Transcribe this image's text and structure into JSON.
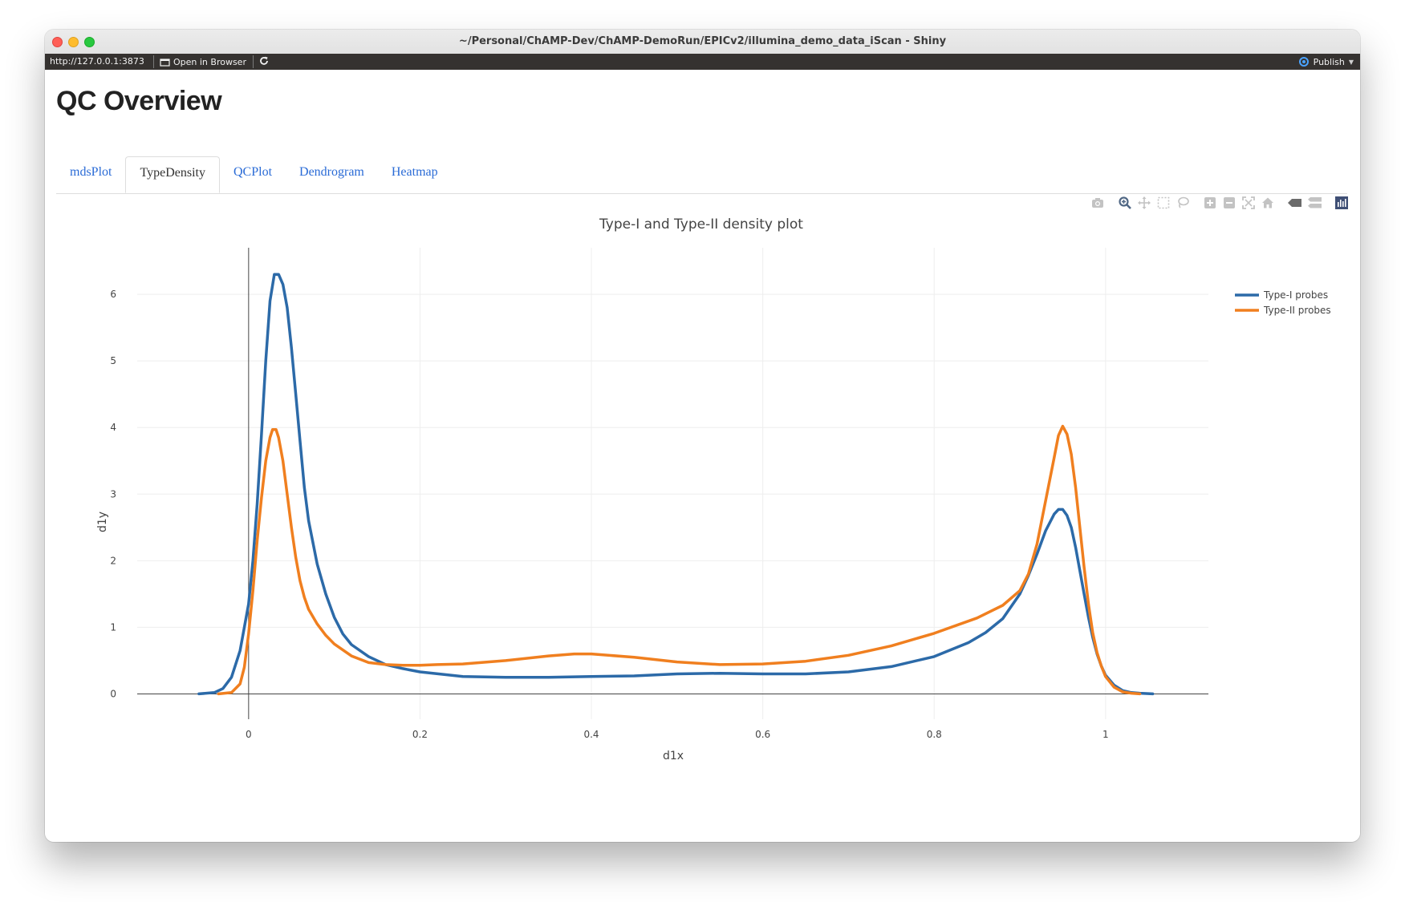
{
  "window": {
    "title": "~/Personal/ChAMP-Dev/ChAMP-DemoRun/EPICv2/illumina_demo_data_iScan - Shiny"
  },
  "toolbar": {
    "url": "http://127.0.0.1:3873",
    "open_in_browser": "Open in Browser",
    "publish": "Publish"
  },
  "page": {
    "title": "QC Overview",
    "tabs": [
      "mdsPlot",
      "TypeDensity",
      "QCPlot",
      "Dendrogram",
      "Heatmap"
    ],
    "active_tab": "TypeDensity"
  },
  "modebar": {
    "icons": [
      "camera-icon",
      "zoom-icon",
      "pan-icon",
      "box-select-icon",
      "lasso-select-icon",
      "zoom-in-icon",
      "zoom-out-icon",
      "autoscale-icon",
      "reset-axes-icon",
      "hover-closest-icon",
      "hover-compare-icon",
      "plotly-logo-icon"
    ]
  },
  "colors": {
    "type_i": "#2c6aa8",
    "type_ii": "#f07f1f",
    "link": "#2a6bd6"
  },
  "chart_data": {
    "type": "line",
    "title": "Type-I and Type-II density plot",
    "xlabel": "d1x",
    "ylabel": "d1y",
    "xlim": [
      -0.13,
      1.12
    ],
    "ylim": [
      -0.38,
      6.7
    ],
    "xticks": [
      0,
      0.2,
      0.4,
      0.6,
      0.8,
      1
    ],
    "xtick_labels": [
      "0",
      "0.2",
      "0.4",
      "0.6",
      "0.8",
      "1"
    ],
    "yticks": [
      0,
      1,
      2,
      3,
      4,
      5,
      6
    ],
    "ytick_labels": [
      "0",
      "1",
      "2",
      "3",
      "4",
      "5",
      "6"
    ],
    "grid": true,
    "legend_position": "top-right",
    "series": [
      {
        "name": "Type-I probes",
        "color": "#2c6aa8",
        "points": [
          [
            -0.058,
            0.0
          ],
          [
            -0.04,
            0.02
          ],
          [
            -0.03,
            0.08
          ],
          [
            -0.02,
            0.25
          ],
          [
            -0.01,
            0.65
          ],
          [
            0.0,
            1.35
          ],
          [
            0.005,
            2.0
          ],
          [
            0.01,
            2.85
          ],
          [
            0.015,
            3.9
          ],
          [
            0.02,
            5.0
          ],
          [
            0.025,
            5.9
          ],
          [
            0.03,
            6.3
          ],
          [
            0.035,
            6.3
          ],
          [
            0.04,
            6.15
          ],
          [
            0.045,
            5.8
          ],
          [
            0.05,
            5.2
          ],
          [
            0.055,
            4.5
          ],
          [
            0.06,
            3.8
          ],
          [
            0.065,
            3.1
          ],
          [
            0.07,
            2.6
          ],
          [
            0.08,
            1.95
          ],
          [
            0.09,
            1.5
          ],
          [
            0.1,
            1.15
          ],
          [
            0.11,
            0.9
          ],
          [
            0.12,
            0.74
          ],
          [
            0.14,
            0.56
          ],
          [
            0.16,
            0.44
          ],
          [
            0.18,
            0.38
          ],
          [
            0.2,
            0.33
          ],
          [
            0.25,
            0.26
          ],
          [
            0.3,
            0.25
          ],
          [
            0.35,
            0.25
          ],
          [
            0.4,
            0.26
          ],
          [
            0.45,
            0.27
          ],
          [
            0.5,
            0.3
          ],
          [
            0.55,
            0.31
          ],
          [
            0.6,
            0.3
          ],
          [
            0.65,
            0.3
          ],
          [
            0.7,
            0.33
          ],
          [
            0.75,
            0.41
          ],
          [
            0.8,
            0.56
          ],
          [
            0.84,
            0.77
          ],
          [
            0.86,
            0.92
          ],
          [
            0.88,
            1.13
          ],
          [
            0.9,
            1.5
          ],
          [
            0.91,
            1.78
          ],
          [
            0.92,
            2.1
          ],
          [
            0.93,
            2.45
          ],
          [
            0.94,
            2.7
          ],
          [
            0.945,
            2.77
          ],
          [
            0.95,
            2.77
          ],
          [
            0.955,
            2.68
          ],
          [
            0.96,
            2.5
          ],
          [
            0.965,
            2.2
          ],
          [
            0.97,
            1.85
          ],
          [
            0.975,
            1.5
          ],
          [
            0.98,
            1.15
          ],
          [
            0.985,
            0.85
          ],
          [
            0.99,
            0.6
          ],
          [
            0.995,
            0.42
          ],
          [
            1.0,
            0.28
          ],
          [
            1.01,
            0.13
          ],
          [
            1.02,
            0.05
          ],
          [
            1.03,
            0.02
          ],
          [
            1.04,
            0.01
          ],
          [
            1.055,
            0.0
          ]
        ]
      },
      {
        "name": "Type-II probes",
        "color": "#f07f1f",
        "points": [
          [
            -0.035,
            0.0
          ],
          [
            -0.02,
            0.02
          ],
          [
            -0.01,
            0.15
          ],
          [
            -0.005,
            0.4
          ],
          [
            0.0,
            0.9
          ],
          [
            0.005,
            1.55
          ],
          [
            0.01,
            2.3
          ],
          [
            0.015,
            2.95
          ],
          [
            0.02,
            3.5
          ],
          [
            0.025,
            3.85
          ],
          [
            0.028,
            3.97
          ],
          [
            0.032,
            3.97
          ],
          [
            0.035,
            3.85
          ],
          [
            0.04,
            3.5
          ],
          [
            0.045,
            3.0
          ],
          [
            0.05,
            2.5
          ],
          [
            0.055,
            2.05
          ],
          [
            0.06,
            1.7
          ],
          [
            0.065,
            1.45
          ],
          [
            0.07,
            1.27
          ],
          [
            0.08,
            1.05
          ],
          [
            0.09,
            0.88
          ],
          [
            0.1,
            0.75
          ],
          [
            0.12,
            0.57
          ],
          [
            0.14,
            0.47
          ],
          [
            0.16,
            0.44
          ],
          [
            0.18,
            0.43
          ],
          [
            0.2,
            0.43
          ],
          [
            0.22,
            0.44
          ],
          [
            0.25,
            0.45
          ],
          [
            0.3,
            0.5
          ],
          [
            0.35,
            0.57
          ],
          [
            0.38,
            0.6
          ],
          [
            0.4,
            0.6
          ],
          [
            0.45,
            0.55
          ],
          [
            0.5,
            0.48
          ],
          [
            0.55,
            0.44
          ],
          [
            0.6,
            0.45
          ],
          [
            0.65,
            0.49
          ],
          [
            0.7,
            0.58
          ],
          [
            0.75,
            0.72
          ],
          [
            0.8,
            0.91
          ],
          [
            0.85,
            1.14
          ],
          [
            0.88,
            1.33
          ],
          [
            0.9,
            1.55
          ],
          [
            0.91,
            1.8
          ],
          [
            0.92,
            2.25
          ],
          [
            0.93,
            2.9
          ],
          [
            0.94,
            3.55
          ],
          [
            0.945,
            3.88
          ],
          [
            0.95,
            4.02
          ],
          [
            0.955,
            3.9
          ],
          [
            0.96,
            3.6
          ],
          [
            0.965,
            3.1
          ],
          [
            0.97,
            2.5
          ],
          [
            0.975,
            1.9
          ],
          [
            0.98,
            1.35
          ],
          [
            0.985,
            0.92
          ],
          [
            0.99,
            0.62
          ],
          [
            0.995,
            0.42
          ],
          [
            1.0,
            0.26
          ],
          [
            1.01,
            0.1
          ],
          [
            1.02,
            0.03
          ],
          [
            1.03,
            0.01
          ],
          [
            1.04,
            0.0
          ]
        ]
      }
    ]
  }
}
